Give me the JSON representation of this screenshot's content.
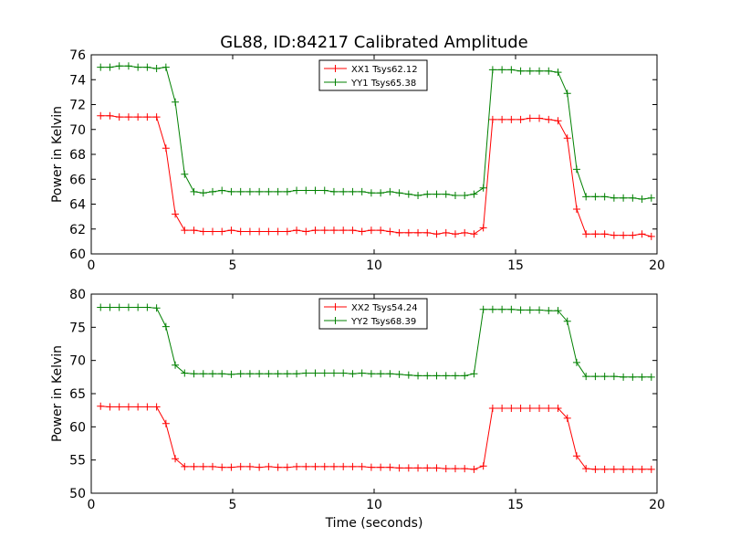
{
  "chart_data": [
    {
      "type": "line",
      "title": "GL88, ID:84217 Calibrated Amplitude",
      "xlabel": "",
      "ylabel": "Power in Kelvin",
      "xlim": [
        0,
        20
      ],
      "ylim": [
        60,
        76
      ],
      "x_ticks": [
        "0",
        "5",
        "10",
        "15",
        "20"
      ],
      "y_ticks": [
        "60",
        "62",
        "64",
        "66",
        "68",
        "70",
        "72",
        "74",
        "76"
      ],
      "legend_position": "top-center",
      "x": [
        0.33,
        0.66,
        0.99,
        1.32,
        1.65,
        1.98,
        2.31,
        2.64,
        2.97,
        3.3,
        3.63,
        3.96,
        4.29,
        4.62,
        4.95,
        5.28,
        5.61,
        5.94,
        6.27,
        6.6,
        6.93,
        7.26,
        7.59,
        7.92,
        8.25,
        8.58,
        8.91,
        9.24,
        9.57,
        9.9,
        10.23,
        10.56,
        10.89,
        11.22,
        11.55,
        11.88,
        12.21,
        12.54,
        12.87,
        13.2,
        13.53,
        13.86,
        14.19,
        14.52,
        14.85,
        15.18,
        15.51,
        15.84,
        16.17,
        16.5,
        16.83,
        17.16,
        17.49,
        17.82,
        18.15,
        18.48,
        18.81,
        19.14,
        19.47,
        19.8
      ],
      "series": [
        {
          "name": "XX1 Tsys62.12",
          "color": "#ff0000",
          "values": [
            71.1,
            71.1,
            71.0,
            71.0,
            71.0,
            71.0,
            71.0,
            68.5,
            63.2,
            61.9,
            61.9,
            61.8,
            61.8,
            61.8,
            61.9,
            61.8,
            61.8,
            61.8,
            61.8,
            61.8,
            61.8,
            61.9,
            61.8,
            61.9,
            61.9,
            61.9,
            61.9,
            61.9,
            61.8,
            61.9,
            61.9,
            61.8,
            61.7,
            61.7,
            61.7,
            61.7,
            61.6,
            61.7,
            61.6,
            61.7,
            61.6,
            62.1,
            70.8,
            70.8,
            70.8,
            70.8,
            70.9,
            70.9,
            70.8,
            70.7,
            69.3,
            63.6,
            61.6,
            61.6,
            61.6,
            61.5,
            61.5,
            61.5,
            61.6,
            61.4
          ]
        },
        {
          "name": "YY1 Tsys65.38",
          "color": "#008000",
          "values": [
            75.0,
            75.0,
            75.1,
            75.1,
            75.0,
            75.0,
            74.9,
            75.0,
            72.2,
            66.4,
            65.0,
            64.9,
            65.0,
            65.1,
            65.0,
            65.0,
            65.0,
            65.0,
            65.0,
            65.0,
            65.0,
            65.1,
            65.1,
            65.1,
            65.1,
            65.0,
            65.0,
            65.0,
            65.0,
            64.9,
            64.9,
            65.0,
            64.9,
            64.8,
            64.7,
            64.8,
            64.8,
            64.8,
            64.7,
            64.7,
            64.8,
            65.3,
            74.8,
            74.8,
            74.8,
            74.7,
            74.7,
            74.7,
            74.7,
            74.6,
            72.9,
            66.8,
            64.6,
            64.6,
            64.6,
            64.5,
            64.5,
            64.5,
            64.4,
            64.5
          ]
        }
      ]
    },
    {
      "type": "line",
      "title": "",
      "xlabel": "Time (seconds)",
      "ylabel": "Power in Kelvin",
      "xlim": [
        0,
        20
      ],
      "ylim": [
        50,
        80
      ],
      "x_ticks": [
        "0",
        "5",
        "10",
        "15",
        "20"
      ],
      "y_ticks": [
        "50",
        "55",
        "60",
        "65",
        "70",
        "75",
        "80"
      ],
      "legend_position": "top-center",
      "x": [
        0.33,
        0.66,
        0.99,
        1.32,
        1.65,
        1.98,
        2.31,
        2.64,
        2.97,
        3.3,
        3.63,
        3.96,
        4.29,
        4.62,
        4.95,
        5.28,
        5.61,
        5.94,
        6.27,
        6.6,
        6.93,
        7.26,
        7.59,
        7.92,
        8.25,
        8.58,
        8.91,
        9.24,
        9.57,
        9.9,
        10.23,
        10.56,
        10.89,
        11.22,
        11.55,
        11.88,
        12.21,
        12.54,
        12.87,
        13.2,
        13.53,
        13.86,
        14.19,
        14.52,
        14.85,
        15.18,
        15.51,
        15.84,
        16.17,
        16.5,
        16.83,
        17.16,
        17.49,
        17.82,
        18.15,
        18.48,
        18.81,
        19.14,
        19.47,
        19.8
      ],
      "series": [
        {
          "name": "XX2 Tsys54.24",
          "color": "#ff0000",
          "values": [
            63.1,
            63.0,
            63.0,
            63.0,
            63.0,
            63.0,
            63.0,
            60.5,
            55.2,
            54.0,
            54.0,
            54.0,
            54.0,
            53.9,
            53.9,
            54.0,
            54.0,
            53.9,
            54.0,
            53.9,
            53.9,
            54.0,
            54.0,
            54.0,
            54.0,
            54.0,
            54.0,
            54.0,
            54.0,
            53.9,
            53.9,
            53.9,
            53.8,
            53.8,
            53.8,
            53.8,
            53.8,
            53.7,
            53.7,
            53.7,
            53.6,
            54.1,
            62.8,
            62.8,
            62.8,
            62.8,
            62.8,
            62.8,
            62.8,
            62.8,
            61.3,
            55.6,
            53.7,
            53.6,
            53.6,
            53.6,
            53.6,
            53.6,
            53.6,
            53.6
          ]
        },
        {
          "name": "YY2 Tsys68.39",
          "color": "#008000",
          "values": [
            78.0,
            78.0,
            78.0,
            78.0,
            78.0,
            78.0,
            77.9,
            75.1,
            69.3,
            68.1,
            68.0,
            68.0,
            68.0,
            68.0,
            67.9,
            68.0,
            68.0,
            68.0,
            68.0,
            68.0,
            68.0,
            68.0,
            68.1,
            68.1,
            68.1,
            68.1,
            68.1,
            68.0,
            68.1,
            68.0,
            68.0,
            68.0,
            67.9,
            67.8,
            67.7,
            67.7,
            67.7,
            67.7,
            67.7,
            67.7,
            68.0,
            77.7,
            77.7,
            77.7,
            77.7,
            77.6,
            77.6,
            77.6,
            77.5,
            77.5,
            75.9,
            69.7,
            67.6,
            67.6,
            67.6,
            67.6,
            67.5,
            67.5,
            67.5,
            67.5
          ]
        }
      ]
    }
  ]
}
